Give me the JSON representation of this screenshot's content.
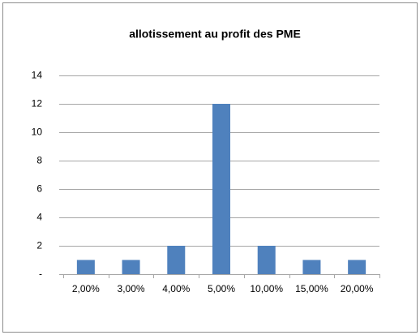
{
  "chart_data": {
    "type": "bar",
    "title": "allotissement au profit des PME",
    "categories": [
      "2,00%",
      "3,00%",
      "4,00%",
      "5,00%",
      "10,00%",
      "15,00%",
      "20,00%"
    ],
    "values": [
      1,
      1,
      2,
      12,
      2,
      1,
      1
    ],
    "color": "#4f81bd",
    "ylim": [
      0,
      14
    ],
    "yticks": [
      {
        "value": 0,
        "label": "-"
      },
      2,
      4,
      6,
      8,
      10,
      12,
      14
    ],
    "grid": true
  }
}
